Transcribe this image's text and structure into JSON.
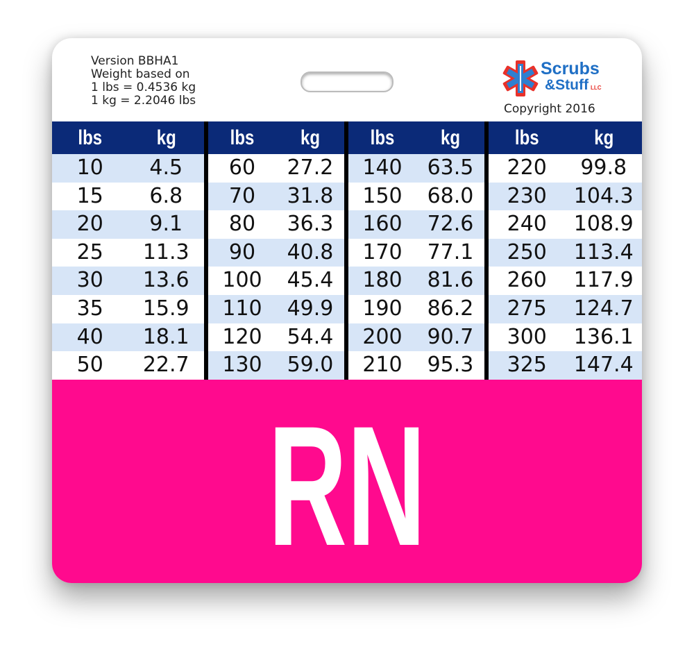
{
  "header": {
    "info_lines": [
      "Version BBHA1",
      "Weight based on",
      "1 lbs = 0.4536 kg",
      "1 kg = 2.2046 lbs"
    ],
    "logo": {
      "line1": "Scrubs",
      "line2": "&Stuff",
      "suffix": "LLC"
    },
    "copyright": "Copyright 2016"
  },
  "table": {
    "groups": [
      {
        "columns": [
          "lbs",
          "kg"
        ],
        "rows": [
          [
            "10",
            "4.5"
          ],
          [
            "15",
            "6.8"
          ],
          [
            "20",
            "9.1"
          ],
          [
            "25",
            "11.3"
          ],
          [
            "30",
            "13.6"
          ],
          [
            "35",
            "15.9"
          ],
          [
            "40",
            "18.1"
          ],
          [
            "50",
            "22.7"
          ]
        ]
      },
      {
        "columns": [
          "lbs",
          "kg"
        ],
        "rows": [
          [
            "60",
            "27.2"
          ],
          [
            "70",
            "31.8"
          ],
          [
            "80",
            "36.3"
          ],
          [
            "90",
            "40.8"
          ],
          [
            "100",
            "45.4"
          ],
          [
            "110",
            "49.9"
          ],
          [
            "120",
            "54.4"
          ],
          [
            "130",
            "59.0"
          ]
        ]
      },
      {
        "columns": [
          "lbs",
          "kg"
        ],
        "rows": [
          [
            "140",
            "63.5"
          ],
          [
            "150",
            "68.0"
          ],
          [
            "160",
            "72.6"
          ],
          [
            "170",
            "77.1"
          ],
          [
            "180",
            "81.6"
          ],
          [
            "190",
            "86.2"
          ],
          [
            "200",
            "90.7"
          ],
          [
            "210",
            "95.3"
          ]
        ]
      },
      {
        "columns": [
          "lbs",
          "kg"
        ],
        "rows": [
          [
            "220",
            "99.8"
          ],
          [
            "230",
            "104.3"
          ],
          [
            "240",
            "108.9"
          ],
          [
            "250",
            "113.4"
          ],
          [
            "260",
            "117.9"
          ],
          [
            "275",
            "124.7"
          ],
          [
            "300",
            "136.1"
          ],
          [
            "325",
            "147.4"
          ]
        ]
      }
    ]
  },
  "footer": {
    "label": "RN"
  }
}
